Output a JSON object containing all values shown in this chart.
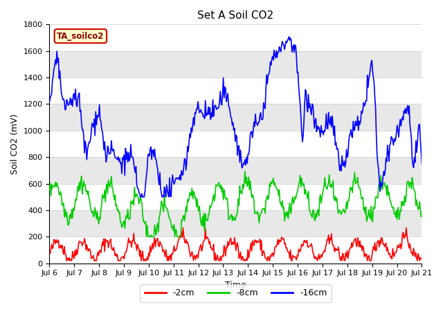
{
  "title": "Set A Soil CO2",
  "xlabel": "Time",
  "ylabel": "Soil CO2 (mV)",
  "ylim": [
    0,
    1800
  ],
  "fig_color": "#ffffff",
  "band_colors": [
    "#ffffff",
    "#e8e8e8"
  ],
  "grid_color": "#cccccc",
  "annotation_text": "TA_soilco2",
  "annotation_bg": "#ffffcc",
  "annotation_border": "#cc0000",
  "series": {
    "neg2cm": {
      "label": "-2cm",
      "color": "#ff0000"
    },
    "neg8cm": {
      "label": "-8cm",
      "color": "#00cc00"
    },
    "neg16cm": {
      "label": "-16cm",
      "color": "#0000ff"
    }
  },
  "xtick_labels": [
    "Jul 6",
    "Jul 7",
    "Jul 8",
    "Jul 9",
    "Jul 10",
    "Jul 11",
    "Jul 12",
    "Jul 13",
    "Jul 14",
    "Jul 15",
    "Jul 16",
    "Jul 17",
    "Jul 18",
    "Jul 19",
    "Jul 20",
    "Jul 21"
  ],
  "yticks": [
    0,
    200,
    400,
    600,
    800,
    1000,
    1200,
    1400,
    1600,
    1800
  ],
  "n_points": 500,
  "title_fontsize": 11,
  "axis_fontsize": 9,
  "tick_fontsize": 8
}
